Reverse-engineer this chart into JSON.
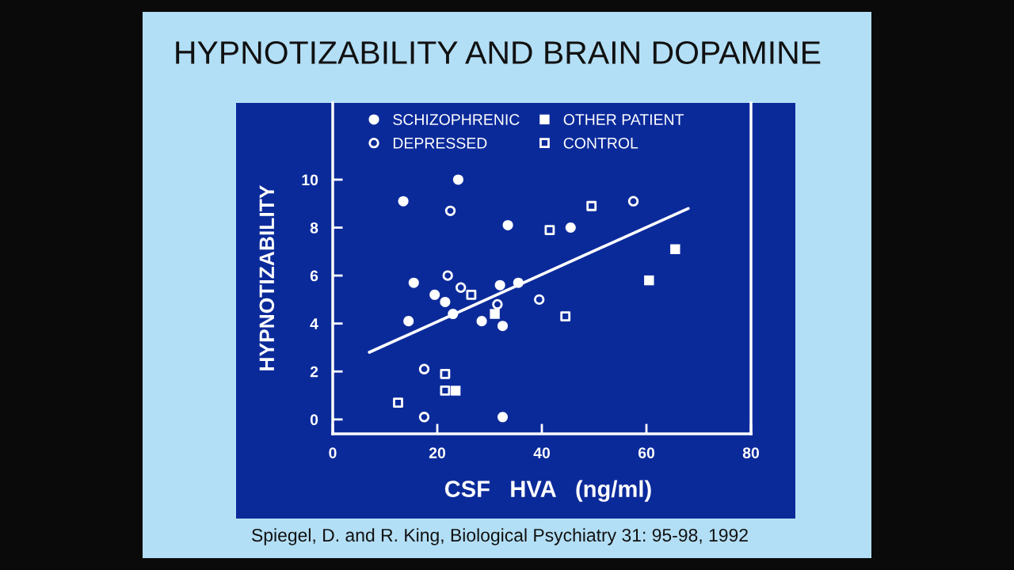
{
  "chart_data": {
    "type": "scatter",
    "title": "HYPNOTIZABILITY AND BRAIN DOPAMINE",
    "xlabel": "CSF   HVA   (ng/ml)",
    "ylabel": "HYPNOTIZABILITY",
    "xlim": [
      0,
      80
    ],
    "xticks": [
      0,
      20,
      40,
      60,
      80
    ],
    "ylim": [
      -0.6,
      13.2
    ],
    "yticks": [
      0,
      2,
      4,
      6,
      8,
      10
    ],
    "legend": "top",
    "series": [
      {
        "name": "SCHIZOPHRENIC",
        "color": "#ffffff",
        "marker": "circle",
        "x": [
          13.5,
          24,
          33.5,
          45.5,
          15.5,
          19.5,
          21.5,
          23,
          14.5,
          32,
          28.5,
          32.5,
          32.5,
          35.5
        ],
        "values": [
          9.1,
          10.0,
          8.1,
          8.0,
          5.7,
          5.2,
          4.9,
          4.4,
          4.1,
          5.6,
          4.1,
          3.9,
          0.1,
          5.7
        ]
      },
      {
        "name": "DEPRESSED",
        "color": "#ffffff",
        "marker": "circle",
        "x": [
          22.5,
          57.5,
          22,
          24.5,
          31.5,
          39.5,
          17.5,
          17.5
        ],
        "values": [
          8.7,
          9.1,
          6.0,
          5.5,
          4.8,
          5.0,
          2.1,
          0.1
        ]
      },
      {
        "name": "OTHER PATIENT",
        "color": "#ffffff",
        "marker": "square",
        "x": [
          31,
          23.5,
          60.5,
          65.5
        ],
        "values": [
          4.4,
          1.2,
          5.8,
          7.1
        ]
      },
      {
        "name": "CONTROL",
        "color": "#ffffff",
        "marker": "square",
        "x": [
          26.5,
          41.5,
          49.5,
          44.5,
          21.5,
          21.5,
          12.5
        ],
        "values": [
          5.2,
          7.9,
          8.9,
          4.3,
          1.9,
          1.2,
          0.7
        ]
      },
      {
        "type": "line",
        "color": "#ffffff",
        "x": [
          7,
          68
        ],
        "values": [
          2.8,
          8.8
        ]
      }
    ],
    "annotations": [
      "Spiegel, D. and R. King, Biological Psychiatry 31: 95-98, 1992"
    ]
  }
}
